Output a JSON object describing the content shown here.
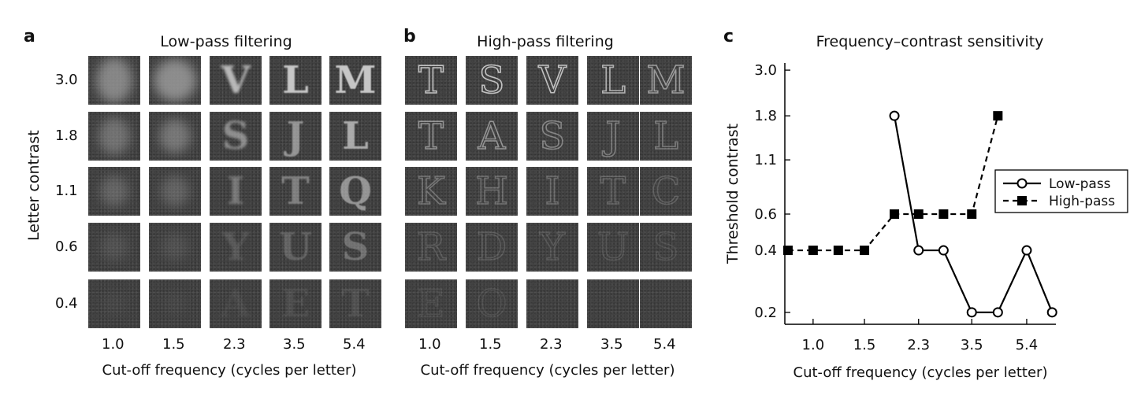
{
  "panels": {
    "a": {
      "letter": "a",
      "title": "Low-pass filtering"
    },
    "b": {
      "letter": "b",
      "title": "High-pass filtering"
    },
    "c": {
      "letter": "c",
      "title": "Frequency–contrast sensitivity"
    }
  },
  "grid": {
    "ylabel": "Letter contrast",
    "xlabel": "Cut-off frequency (cycles per letter)",
    "contrast_levels": [
      "3.0",
      "1.8",
      "1.1",
      "0.6",
      "0.4"
    ],
    "frequencies": [
      "1.0",
      "1.5",
      "2.3",
      "3.5",
      "5.4"
    ],
    "low_pass_letters": [
      [
        "",
        "",
        "V",
        "L",
        "M"
      ],
      [
        "",
        "",
        "S",
        "J",
        "L"
      ],
      [
        "",
        "",
        "I",
        "T",
        "Q"
      ],
      [
        "",
        "",
        "Y",
        "U",
        "S"
      ],
      [
        "",
        "",
        "A",
        "E",
        "T"
      ]
    ],
    "high_pass_letters": [
      [
        "T",
        "S",
        "V",
        "L",
        "M"
      ],
      [
        "T",
        "A",
        "S",
        "J",
        "L"
      ],
      [
        "K",
        "H",
        "I",
        "T",
        "C"
      ],
      [
        "R",
        "D",
        "Y",
        "U",
        "S"
      ],
      [
        "E",
        "O",
        "",
        "",
        ""
      ]
    ]
  },
  "chart_data": {
    "type": "line",
    "title": "Frequency–contrast sensitivity",
    "xlabel": "Cut-off frequency (cycles per letter)",
    "ylabel": "Threshold contrast",
    "x_ticks": [
      "1.0",
      "1.5",
      "2.3",
      "3.5",
      "5.4"
    ],
    "y_ticks": [
      "3.0",
      "1.8",
      "1.1",
      "0.6",
      "0.4",
      "0.2"
    ],
    "x_scale": "log",
    "y_scale": "log",
    "legend": {
      "position": "right",
      "entries": [
        "Low-pass",
        "High-pass"
      ]
    },
    "series": [
      {
        "name": "Low-pass",
        "marker": "open-circle",
        "line": "solid",
        "x": [
          1.9,
          2.3,
          2.8,
          3.5,
          4.3,
          5.4,
          6.6
        ],
        "y": [
          1.8,
          0.4,
          0.4,
          0.2,
          0.2,
          0.4,
          0.2
        ]
      },
      {
        "name": "High-pass",
        "marker": "filled-square",
        "line": "dashed",
        "x": [
          0.82,
          1.0,
          1.22,
          1.5,
          1.9,
          2.3,
          2.8,
          3.5,
          4.3
        ],
        "y": [
          0.4,
          0.4,
          0.4,
          0.4,
          0.6,
          0.6,
          0.6,
          0.6,
          1.8
        ]
      }
    ]
  }
}
